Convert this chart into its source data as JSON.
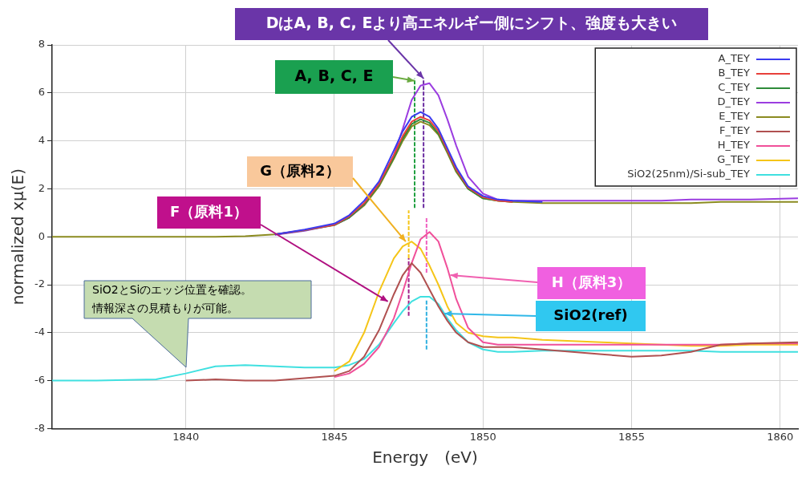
{
  "chart_data": {
    "type": "line",
    "xlabel": "Energy　(eV)",
    "ylabel": "normalized xμ(E)",
    "x": [
      1835.5,
      1837,
      1839,
      1840,
      1841,
      1842,
      1843,
      1844,
      1845,
      1845.5,
      1846,
      1846.5,
      1847,
      1847.3,
      1847.6,
      1847.9,
      1848.2,
      1848.5,
      1848.8,
      1849.1,
      1849.5,
      1850,
      1850.5,
      1851,
      1852,
      1853,
      1854,
      1855,
      1856,
      1857,
      1858,
      1859,
      1860.6
    ],
    "series": [
      {
        "name": "A_TEY",
        "color": "#3b3bf0",
        "values": [
          null,
          null,
          null,
          null,
          null,
          null,
          0.1,
          0.3,
          0.55,
          0.9,
          1.5,
          2.3,
          3.6,
          4.4,
          5.0,
          5.2,
          5.0,
          4.5,
          3.7,
          2.9,
          2.1,
          1.7,
          1.55,
          1.5,
          1.45,
          null,
          null,
          null,
          null,
          null,
          null,
          null,
          null
        ]
      },
      {
        "name": "B_TEY",
        "color": "#e8403a",
        "values": [
          null,
          null,
          null,
          null,
          null,
          null,
          0.1,
          0.28,
          0.5,
          0.85,
          1.4,
          2.2,
          3.4,
          4.2,
          4.8,
          5.0,
          4.85,
          4.4,
          3.6,
          2.8,
          2.05,
          1.65,
          1.5,
          1.45,
          null,
          null,
          null,
          null,
          null,
          null,
          null,
          null,
          null
        ]
      },
      {
        "name": "C_TEY",
        "color": "#2e8b3a",
        "values": [
          null,
          null,
          null,
          null,
          null,
          null,
          0.1,
          0.27,
          0.5,
          0.8,
          1.35,
          2.15,
          3.3,
          4.1,
          4.7,
          4.9,
          4.75,
          4.3,
          3.55,
          2.75,
          2.0,
          1.6,
          1.5,
          1.45,
          null,
          null,
          null,
          null,
          null,
          null,
          null,
          null,
          null
        ]
      },
      {
        "name": "D_TEY",
        "color": "#9b3de0",
        "values": [
          null,
          null,
          null,
          null,
          null,
          null,
          0.08,
          0.25,
          0.5,
          0.8,
          1.35,
          2.2,
          3.4,
          4.5,
          5.7,
          6.3,
          6.4,
          5.9,
          4.9,
          3.8,
          2.5,
          1.8,
          1.55,
          1.5,
          1.5,
          1.5,
          1.5,
          1.5,
          1.5,
          1.55,
          1.55,
          1.55,
          1.6
        ]
      },
      {
        "name": "E_TEY",
        "color": "#8b8b20",
        "values": [
          0,
          0,
          0,
          0,
          0,
          0.02,
          0.1,
          0.27,
          0.48,
          0.8,
          1.3,
          2.1,
          3.25,
          4.0,
          4.6,
          4.8,
          4.65,
          4.25,
          3.5,
          2.7,
          2.0,
          1.6,
          1.5,
          1.45,
          1.4,
          1.4,
          1.4,
          1.4,
          1.4,
          1.4,
          1.45,
          1.45,
          1.45
        ]
      },
      {
        "name": "F_TEY",
        "color": "#b05050",
        "values": [
          null,
          null,
          null,
          -6.0,
          -5.95,
          -6.0,
          -6.0,
          -5.9,
          -5.8,
          -5.6,
          -5.0,
          -3.9,
          -2.4,
          -1.6,
          -1.1,
          -1.5,
          -2.2,
          -2.9,
          -3.5,
          -4.0,
          -4.4,
          -4.6,
          -4.6,
          -4.6,
          -4.7,
          -4.8,
          -4.9,
          -5.0,
          -4.95,
          -4.8,
          -4.5,
          -4.45,
          -4.4
        ]
      },
      {
        "name": "H_TEY",
        "color": "#f0509a",
        "values": [
          null,
          null,
          null,
          null,
          null,
          null,
          null,
          null,
          -5.85,
          -5.7,
          -5.3,
          -4.6,
          -3.4,
          -2.3,
          -1.1,
          -0.1,
          0.2,
          -0.2,
          -1.3,
          -2.6,
          -3.8,
          -4.4,
          -4.5,
          -4.5,
          -4.5,
          -4.5,
          -4.5,
          -4.5,
          -4.5,
          -4.5,
          -4.5,
          -4.45,
          -4.45
        ]
      },
      {
        "name": "G_TEY",
        "color": "#f5c518",
        "values": [
          null,
          null,
          null,
          null,
          null,
          null,
          null,
          null,
          -5.6,
          -5.2,
          -4.0,
          -2.3,
          -0.9,
          -0.4,
          -0.2,
          -0.5,
          -1.2,
          -2.0,
          -2.9,
          -3.6,
          -4.0,
          -4.15,
          -4.2,
          -4.2,
          -4.3,
          -4.35,
          -4.4,
          -4.45,
          -4.5,
          -4.55,
          -4.55,
          -4.5,
          -4.5
        ]
      },
      {
        "name": "SiO2(25nm)/Si-sub_TEY",
        "color": "#40e0e0",
        "values": [
          -6.0,
          -6.0,
          -5.95,
          -5.7,
          -5.4,
          -5.35,
          -5.4,
          -5.45,
          -5.45,
          -5.35,
          -5.1,
          -4.5,
          -3.6,
          -3.1,
          -2.7,
          -2.5,
          -2.5,
          -2.8,
          -3.4,
          -3.9,
          -4.4,
          -4.7,
          -4.8,
          -4.8,
          -4.75,
          -4.75,
          -4.75,
          -4.75,
          -4.75,
          -4.75,
          -4.8,
          -4.8,
          -4.8
        ]
      },
      {
        "type": "line",
        "color": "#20a040",
        "line_style": "dashed",
        "x": [
          1847.7,
          1847.7
        ],
        "values": [
          1.2,
          6.6
        ]
      },
      {
        "type": "line",
        "color": "#6a2ca0",
        "line_style": "dashed",
        "x": [
          1848.0,
          1848.0
        ],
        "values": [
          1.2,
          6.6
        ]
      },
      {
        "type": "line",
        "color": "#f5c518",
        "line_style": "dashed",
        "x": [
          1847.5,
          1847.5
        ],
        "values": [
          -0.9,
          1.1
        ]
      },
      {
        "type": "line",
        "color": "#a0208a",
        "line_style": "dashed",
        "x": [
          1847.5,
          1847.5
        ],
        "values": [
          -3.3,
          -0.9
        ]
      },
      {
        "type": "line",
        "color": "#f060c0",
        "line_style": "dashed",
        "x": [
          1848.1,
          1848.1
        ],
        "values": [
          -1.5,
          0.8
        ]
      },
      {
        "type": "line",
        "color": "#30b0e0",
        "line_style": "dashed",
        "x": [
          1848.1,
          1848.1
        ],
        "values": [
          -4.7,
          -2.65
        ]
      }
    ],
    "xlim": [
      1835.5,
      1860.6
    ],
    "xticks": [
      1840,
      1845,
      1850,
      1855,
      1860
    ],
    "ylim": [
      -8,
      8
    ],
    "yticks": [
      -8,
      -6,
      -4,
      -2,
      0,
      2,
      4,
      6,
      8
    ],
    "grid": true,
    "legend": "top right",
    "marker": "none",
    "line_style": "solid",
    "annotations": [
      {
        "text": "DはA, B, C, Eより高エネルギー側にシフト、強度も大きい",
        "x": 1848.0,
        "y": 6.6
      },
      {
        "text": "A, B, C, E",
        "x": 1847.7,
        "y": 6.5
      },
      {
        "text": "G（原料2）",
        "x": 1847.4,
        "y": -0.2
      },
      {
        "text": "F（原料1）",
        "x": 1846.8,
        "y": -2.7
      },
      {
        "text": "H（原料3）",
        "x": 1848.9,
        "y": -1.6
      },
      {
        "text": "SiO2(ref)",
        "x": 1848.7,
        "y": -3.2
      },
      "SiO2とSiのエッジ位置を確認。",
      "情報深さの見積もりが可能。"
    ]
  }
}
